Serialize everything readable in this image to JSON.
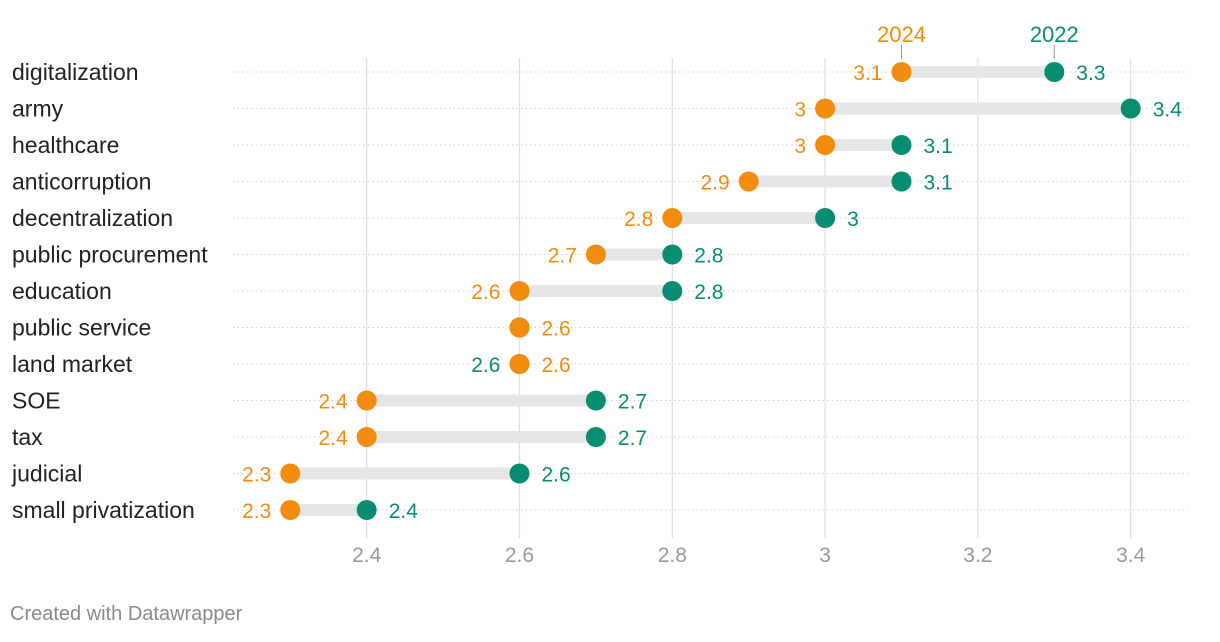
{
  "chart_data": {
    "type": "dot-range",
    "categories": [
      "digitalization",
      "army",
      "healthcare",
      "anticorruption",
      "decentralization",
      "public procurement",
      "education",
      "public service",
      "land market",
      "SOE",
      "tax",
      "judicial",
      "small privatization"
    ],
    "series": [
      {
        "name": "2024",
        "color": "#f28c0f",
        "values": [
          3.1,
          3.0,
          3.0,
          2.9,
          2.8,
          2.7,
          2.6,
          2.6,
          2.6,
          2.4,
          2.4,
          2.3,
          2.3
        ]
      },
      {
        "name": "2022",
        "color": "#088d72",
        "values": [
          3.3,
          3.4,
          3.1,
          3.1,
          3.0,
          2.8,
          2.8,
          2.6,
          2.6,
          2.7,
          2.7,
          2.6,
          2.4
        ]
      }
    ],
    "value_labels": {
      "2024": [
        "3.1",
        "3",
        "3",
        "2.9",
        "2.8",
        "2.7",
        "2.6",
        "2.6",
        "2.6",
        "2.4",
        "2.4",
        "2.3",
        "2.3"
      ],
      "2022": [
        "3.3",
        "3.4",
        "3.1",
        "3.1",
        "3",
        "2.8",
        "2.8",
        "",
        "2.6",
        "2.7",
        "2.7",
        "2.6",
        "2.4"
      ]
    },
    "legend_placement": "top-right",
    "xlim": [
      2.225,
      3.475
    ],
    "xticks": [
      2.4,
      2.6,
      2.8,
      3.0,
      3.2,
      3.4
    ],
    "xtick_labels": [
      "2.4",
      "2.6",
      "2.8",
      "3",
      "3.2",
      "3.4"
    ],
    "grid": true,
    "range_bar_color": "#e6e6e6"
  },
  "footer": {
    "credit": "Created with Datawrapper"
  }
}
